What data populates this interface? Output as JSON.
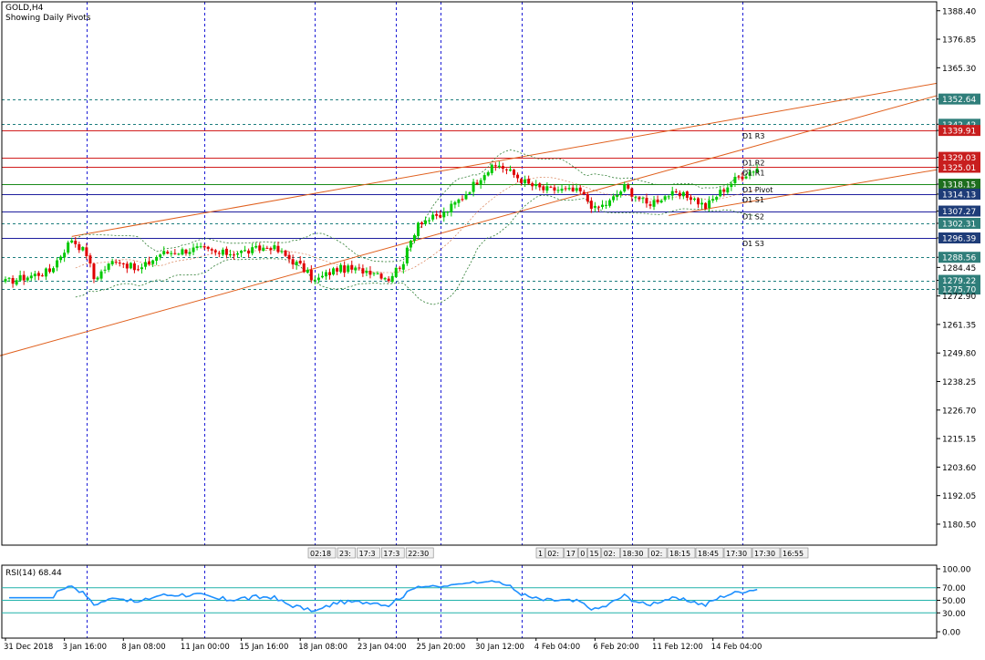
{
  "header": {
    "symbol": "GOLD,H4",
    "subtitle": "Showing Daily Pivots"
  },
  "rsi_label": "RSI(14) 68.44",
  "colors": {
    "bull": "#00c800",
    "bear": "#e00000",
    "grid": "#1c1cd6",
    "pivot_support": "#1e1e9e",
    "pivot_resist": "#d21e1e",
    "pivot_main": "#1a8a1a",
    "trend": "#e0601e",
    "rsi": "#1e90ff",
    "rsi_level": "#20b2aa",
    "badge_blue": "#1e3c78",
    "badge_red": "#c81e1e",
    "badge_green": "#1e6e1e",
    "badge_teal": "#2f7e7a"
  },
  "chart_data": {
    "type": "candlestick",
    "price_axis": {
      "min": 1172,
      "max": 1392,
      "ticks": [
        "1388.40",
        "1376.85",
        "1365.30",
        "1352.64",
        "1342.42",
        "1339.91",
        "1329.03",
        "1325.01",
        "1318.15",
        "1314.13",
        "1307.27",
        "1302.31",
        "1296.39",
        "1288.56",
        "1284.45",
        "1279.22",
        "1275.70",
        "1272.90",
        "1261.35",
        "1249.80",
        "1238.25",
        "1226.70",
        "1215.15",
        "1203.60",
        "1192.05",
        "1180.50"
      ],
      "tick_values": [
        1388.4,
        1376.85,
        1365.3,
        1352.64,
        1342.42,
        1339.91,
        1329.03,
        1325.01,
        1318.15,
        1314.13,
        1307.27,
        1302.31,
        1296.39,
        1288.56,
        1284.45,
        1279.22,
        1275.7,
        1272.9,
        1261.35,
        1249.8,
        1238.25,
        1226.7,
        1215.15,
        1203.6,
        1192.05,
        1180.5
      ]
    },
    "highlighted_levels": [
      {
        "label": "1352.64",
        "value": 1352.64,
        "badge": "teal",
        "style": "dash",
        "color": "#1e7e7e"
      },
      {
        "label": "1342.42",
        "value": 1342.42,
        "badge": "teal",
        "style": "dash",
        "color": "#1e7e7e"
      },
      {
        "label": "1339.91",
        "value": 1339.91,
        "badge": "red",
        "style": "solid",
        "color": "#d21e1e"
      },
      {
        "label": "1329.03",
        "value": 1329.03,
        "badge": "red",
        "style": "solid",
        "color": "#d21e1e"
      },
      {
        "label": "1325.01",
        "value": 1325.01,
        "badge": "red",
        "style": "solid",
        "color": "#d21e1e"
      },
      {
        "label": "1318.15",
        "value": 1318.15,
        "badge": "green",
        "style": "solid",
        "color": "#1a8a1a"
      },
      {
        "label": "1314.13",
        "value": 1314.13,
        "badge": "blue",
        "style": "solid",
        "color": "#1e1e9e"
      },
      {
        "label": "1307.27",
        "value": 1307.27,
        "badge": "blue",
        "style": "solid",
        "color": "#1e1e9e"
      },
      {
        "label": "1302.31",
        "value": 1302.31,
        "badge": "teal",
        "style": "dash",
        "color": "#1e7e7e"
      },
      {
        "label": "1296.39",
        "value": 1296.39,
        "badge": "blue",
        "style": "solid",
        "color": "#1e1e9e"
      },
      {
        "label": "1288.56",
        "value": 1288.56,
        "badge": "teal",
        "style": "dash",
        "color": "#1e7e7e"
      },
      {
        "label": "1279.22",
        "value": 1279.22,
        "badge": "teal",
        "style": "dash",
        "color": "#1e7e7e"
      },
      {
        "label": "1275.70",
        "value": 1275.7,
        "badge": "teal",
        "style": "dash",
        "color": "#1e7e7e"
      }
    ],
    "pivot_labels": [
      {
        "text": "D1 R3",
        "value": 1339.91
      },
      {
        "text": "D1 R2",
        "value": 1329.03
      },
      {
        "text": "D1 R1",
        "value": 1325.01
      },
      {
        "text": "D1 Pivot",
        "value": 1318.15
      },
      {
        "text": "D1 S1",
        "value": 1314.13
      },
      {
        "text": "D1 S2",
        "value": 1307.27
      },
      {
        "text": "D1 S3",
        "value": 1296.39
      }
    ],
    "x_labels": [
      "31 Dec 2018",
      "3 Jan 16:00",
      "8 Jan 08:00",
      "11 Jan 00:00",
      "15 Jan 16:00",
      "18 Jan 08:00",
      "23 Jan 04:00",
      "25 Jan 20:00",
      "30 Jan 12:00",
      "4 Feb 04:00",
      "6 Feb 20:00",
      "11 Feb 12:00",
      "14 Feb 04:00"
    ],
    "x_label_bars": [
      0,
      16,
      32,
      48,
      64,
      80,
      96,
      112,
      128,
      144,
      160,
      176,
      192
    ],
    "vertical_grid_bars": [
      22,
      54,
      84,
      106,
      118,
      140,
      170,
      200
    ],
    "bar_count": 205,
    "time_tags_left": [
      "02:18",
      "23:",
      "17:3",
      "17:3",
      "22:30"
    ],
    "time_tags_right": [
      "1",
      "02:",
      "17",
      "0",
      "15",
      "02:",
      "18:30",
      "02:",
      "18:15",
      "18:45",
      "17:30",
      "17:30",
      "16:55"
    ],
    "close_anchors": [
      {
        "bar": 0,
        "close": 1278.5
      },
      {
        "bar": 12,
        "close": 1283
      },
      {
        "bar": 18,
        "close": 1296
      },
      {
        "bar": 22,
        "close": 1290
      },
      {
        "bar": 24,
        "close": 1280
      },
      {
        "bar": 30,
        "close": 1288
      },
      {
        "bar": 36,
        "close": 1283
      },
      {
        "bar": 42,
        "close": 1290
      },
      {
        "bar": 52,
        "close": 1292
      },
      {
        "bar": 58,
        "close": 1290
      },
      {
        "bar": 66,
        "close": 1291
      },
      {
        "bar": 72,
        "close": 1293
      },
      {
        "bar": 80,
        "close": 1285
      },
      {
        "bar": 84,
        "close": 1279
      },
      {
        "bar": 90,
        "close": 1284
      },
      {
        "bar": 100,
        "close": 1283
      },
      {
        "bar": 104,
        "close": 1280
      },
      {
        "bar": 108,
        "close": 1287
      },
      {
        "bar": 112,
        "close": 1303
      },
      {
        "bar": 118,
        "close": 1305
      },
      {
        "bar": 124,
        "close": 1313
      },
      {
        "bar": 130,
        "close": 1323
      },
      {
        "bar": 134,
        "close": 1326
      },
      {
        "bar": 138,
        "close": 1322
      },
      {
        "bar": 142,
        "close": 1318
      },
      {
        "bar": 146,
        "close": 1316
      },
      {
        "bar": 150,
        "close": 1316
      },
      {
        "bar": 156,
        "close": 1315
      },
      {
        "bar": 160,
        "close": 1308
      },
      {
        "bar": 164,
        "close": 1311
      },
      {
        "bar": 168,
        "close": 1317
      },
      {
        "bar": 174,
        "close": 1310
      },
      {
        "bar": 180,
        "close": 1314
      },
      {
        "bar": 186,
        "close": 1313
      },
      {
        "bar": 190,
        "close": 1309
      },
      {
        "bar": 194,
        "close": 1315
      },
      {
        "bar": 198,
        "close": 1320
      },
      {
        "bar": 204,
        "close": 1325
      }
    ],
    "trend_lines": [
      {
        "from": {
          "bar": -2,
          "price": 1248.5
        },
        "to": {
          "bar": 254,
          "price": 1354
        }
      },
      {
        "from": {
          "bar": 18,
          "price": 1297
        },
        "to": {
          "bar": 254,
          "price": 1359
        }
      },
      {
        "from": {
          "bar": 180,
          "price": 1305.5
        },
        "to": {
          "bar": 254,
          "price": 1324
        }
      }
    ],
    "rsi": {
      "period": 14,
      "last": 68.44,
      "levels": [
        70,
        50,
        30
      ],
      "ticks": [
        "100.00",
        "70.00",
        "50.00",
        "30.00",
        "0.00"
      ],
      "tick_values": [
        100,
        70,
        50,
        30,
        0
      ]
    }
  }
}
